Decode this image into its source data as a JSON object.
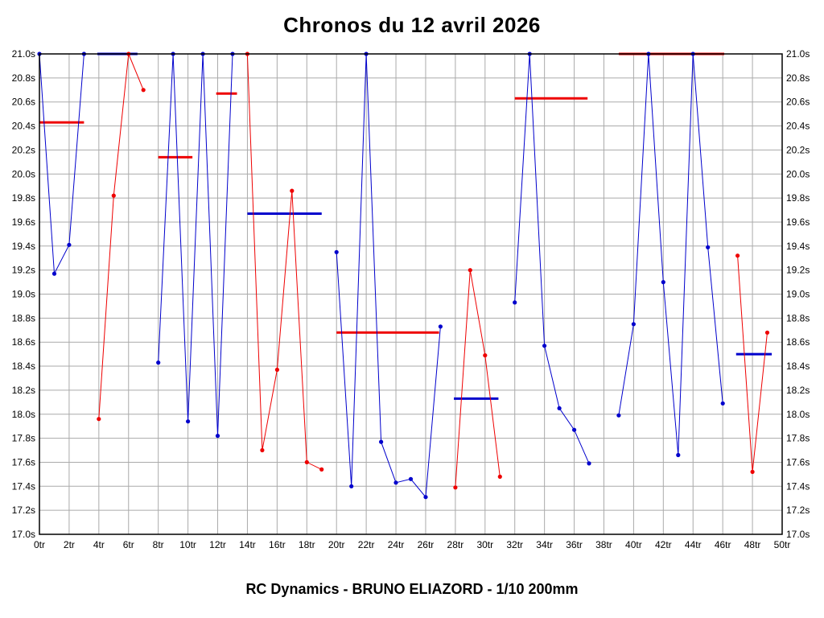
{
  "chart_data": {
    "type": "line",
    "title": "Chronos du 12 avril 2026",
    "footer": "RC Dynamics - BRUNO ELIAZORD - 1/10 200mm",
    "xlim": [
      0,
      50
    ],
    "ylim": [
      17.0,
      21.0
    ],
    "grid": true,
    "legend": "none",
    "x_unit": "tr",
    "y_unit": "s",
    "x_tick_labels": [
      "0tr",
      "2tr",
      "4tr",
      "6tr",
      "8tr",
      "10tr",
      "12tr",
      "14tr",
      "16tr",
      "18tr",
      "20tr",
      "22tr",
      "24tr",
      "26tr",
      "28tr",
      "30tr",
      "32tr",
      "34tr",
      "36tr",
      "38tr",
      "40tr",
      "42tr",
      "44tr",
      "46tr",
      "48tr",
      "50tr"
    ],
    "y_tick_labels": [
      "21.0s",
      "20.8s",
      "20.6s",
      "20.4s",
      "20.2s",
      "20.0s",
      "19.8s",
      "19.6s",
      "19.4s",
      "19.2s",
      "19.0s",
      "18.8s",
      "18.6s",
      "18.4s",
      "18.2s",
      "18.0s",
      "17.8s",
      "17.6s",
      "17.4s",
      "17.2s",
      "17.0s"
    ],
    "series": [
      {
        "name": "blue-driver-laps",
        "color": "#0000cc",
        "segments": [
          [
            [
              0,
              21.0
            ],
            [
              1,
              19.17
            ],
            [
              2,
              19.41
            ],
            [
              3,
              21.0
            ]
          ],
          [
            [
              8,
              18.43
            ],
            [
              9,
              21.0
            ],
            [
              10,
              17.94
            ],
            [
              11,
              21.0
            ],
            [
              12,
              17.82
            ],
            [
              13,
              21.0
            ]
          ],
          [
            [
              20,
              19.35
            ],
            [
              21,
              17.4
            ],
            [
              22,
              21.0
            ],
            [
              23,
              17.77
            ],
            [
              24,
              17.43
            ],
            [
              25,
              17.46
            ],
            [
              26,
              17.31
            ],
            [
              27,
              18.73
            ]
          ],
          [
            [
              32,
              18.93
            ],
            [
              33,
              21.0
            ],
            [
              34,
              18.57
            ],
            [
              35,
              18.05
            ],
            [
              36,
              17.87
            ],
            [
              37,
              17.59
            ]
          ],
          [
            [
              39,
              17.99
            ],
            [
              40,
              18.75
            ],
            [
              41,
              21.0
            ],
            [
              42,
              19.1
            ],
            [
              43,
              17.66
            ],
            [
              44,
              21.0
            ],
            [
              45,
              19.39
            ],
            [
              46,
              18.09
            ]
          ]
        ]
      },
      {
        "name": "red-driver-laps",
        "color": "#ee0000",
        "segments": [
          [
            [
              4,
              17.96
            ],
            [
              5,
              19.82
            ],
            [
              6,
              21.0
            ],
            [
              7,
              20.7
            ]
          ],
          [
            [
              14,
              21.0
            ],
            [
              15,
              17.7
            ],
            [
              16,
              18.37
            ],
            [
              17,
              19.86
            ],
            [
              18,
              17.6
            ],
            [
              19,
              17.54
            ]
          ],
          [
            [
              28,
              17.39
            ],
            [
              29,
              19.2
            ],
            [
              30,
              18.49
            ],
            [
              31,
              17.48
            ]
          ],
          [
            [
              47,
              19.32
            ],
            [
              48,
              17.52
            ],
            [
              49,
              18.68
            ]
          ]
        ]
      }
    ],
    "average_bars": [
      {
        "color": "#ee0000",
        "from": 0.0,
        "to": 3.0,
        "value": 20.43
      },
      {
        "color": "#0000cc",
        "from": 3.9,
        "to": 6.6,
        "value": 21.0
      },
      {
        "color": "#ee0000",
        "from": 8.0,
        "to": 10.3,
        "value": 20.14
      },
      {
        "color": "#ee0000",
        "from": 11.9,
        "to": 13.3,
        "value": 20.67
      },
      {
        "color": "#0000cc",
        "from": 14.0,
        "to": 19.0,
        "value": 19.67
      },
      {
        "color": "#ee0000",
        "from": 20.0,
        "to": 26.9,
        "value": 18.68
      },
      {
        "color": "#0000cc",
        "from": 27.9,
        "to": 30.9,
        "value": 18.13
      },
      {
        "color": "#ee0000",
        "from": 32.0,
        "to": 36.9,
        "value": 20.63
      },
      {
        "color": "#ee0000",
        "from": 39.0,
        "to": 46.1,
        "value": 21.0
      },
      {
        "color": "#0000cc",
        "from": 46.9,
        "to": 49.3,
        "value": 18.5
      }
    ]
  }
}
